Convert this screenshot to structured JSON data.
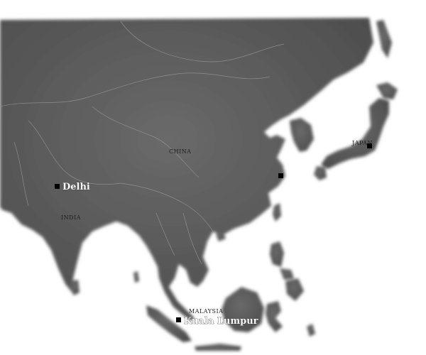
{
  "map": {
    "colors": {
      "land": "#5e5e5e",
      "sea": "#ffffff",
      "border": "#9a9a9a",
      "marker": "#000000",
      "label_dark": "#1e1e1e",
      "label_light": "#ffffff"
    },
    "countries": {
      "china": "CHINA",
      "india": "INDIA",
      "japan": "JAPAN",
      "malaysia": "MALAYSIA"
    },
    "cities": {
      "delhi": "Delhi",
      "kuala_lumpur": "Kuala Lumpur",
      "shanghai": "",
      "tokyo": ""
    }
  }
}
